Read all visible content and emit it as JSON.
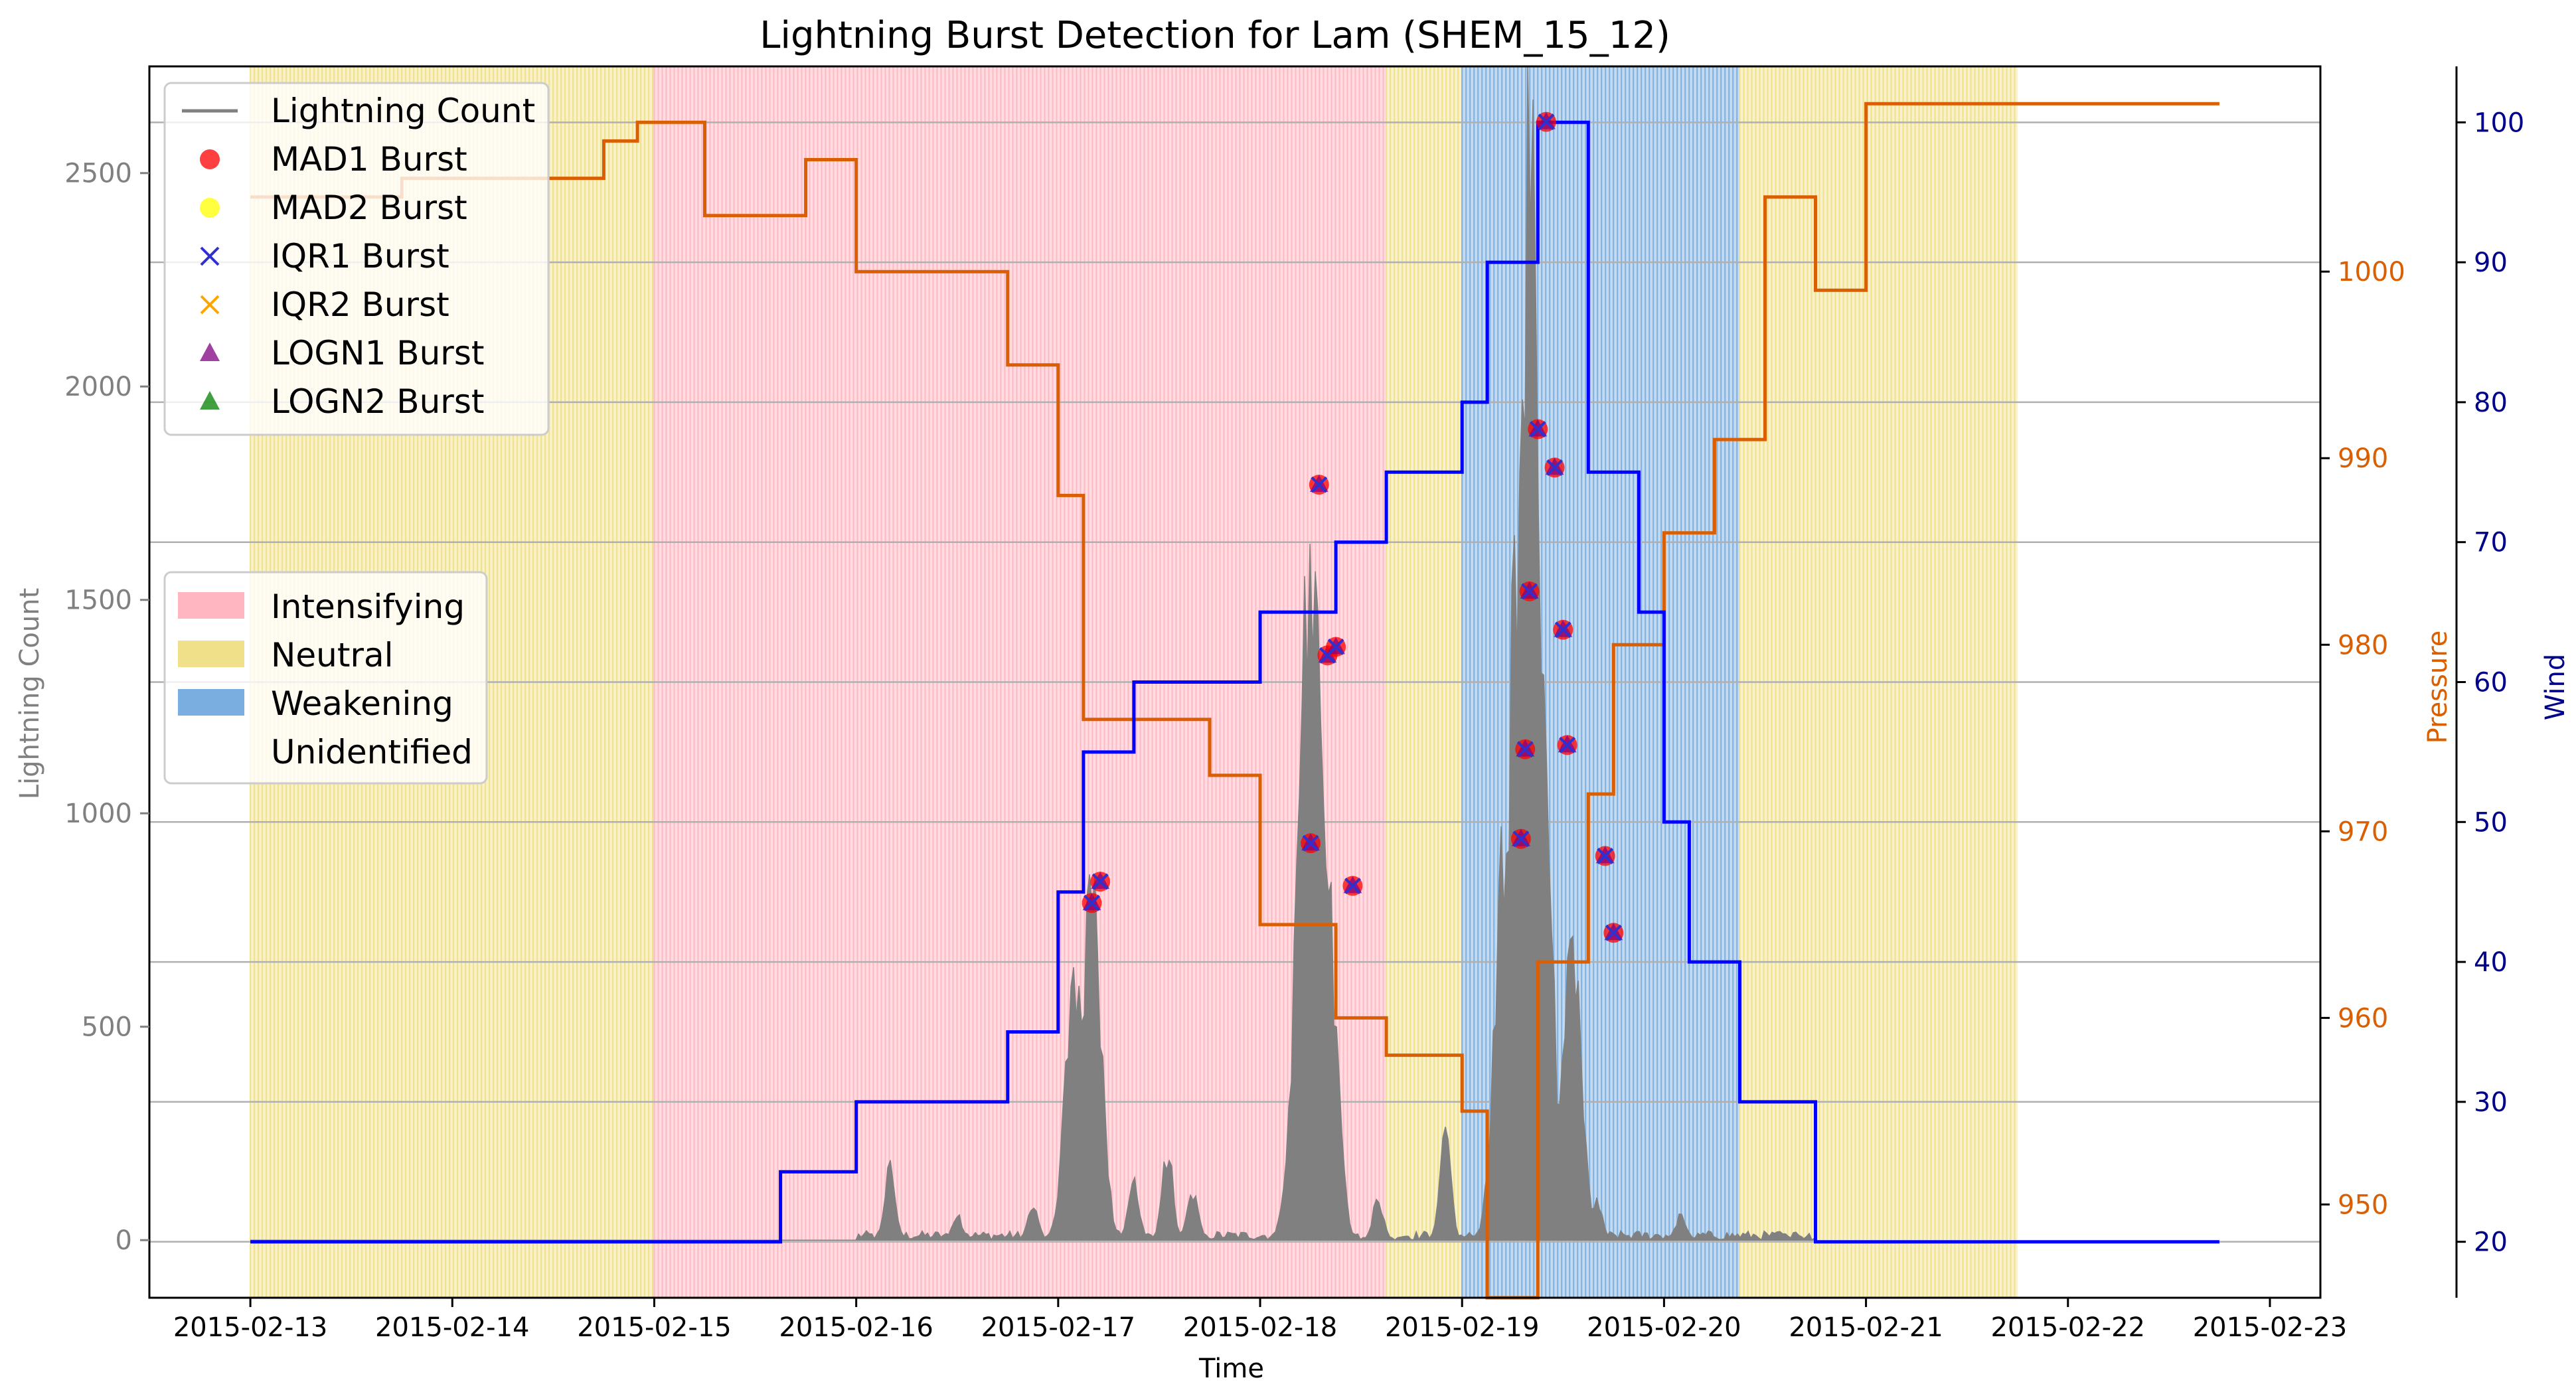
{
  "chart_data": {
    "type": "line",
    "title": "Lightning Burst Detection for Lam (SHEM_15_12)",
    "xlabel": "Time",
    "ylabel_left": "Lightning Count",
    "ylabel_right1": "Pressure",
    "ylabel_right2": "Wind",
    "x_ticks": [
      "2015-02-13",
      "2015-02-14",
      "2015-02-15",
      "2015-02-16",
      "2015-02-17",
      "2015-02-18",
      "2015-02-19",
      "2015-02-20",
      "2015-02-21",
      "2015-02-22",
      "2015-02-23"
    ],
    "x_range": [
      "2015-02-12 12:00",
      "2015-02-23 06:00"
    ],
    "y_left": {
      "min": -135,
      "max": 2750,
      "ticks": [
        0,
        500,
        1000,
        1500,
        2000,
        2500
      ]
    },
    "y_pressure": {
      "min": 945,
      "max": 1011,
      "ticks": [
        950,
        960,
        970,
        980,
        990,
        1000
      ]
    },
    "y_wind": {
      "min": 16,
      "max": 104,
      "ticks": [
        20,
        30,
        40,
        50,
        60,
        70,
        80,
        90,
        100
      ]
    },
    "grid": "horizontal lines at wind ticks",
    "colors": {
      "lightning": "#808080",
      "pressure": "#d95f02",
      "wind": "#0000ff",
      "intensifying": "#ffb6c1",
      "neutral": "#f0e08a",
      "weakening": "#7aaee0",
      "mad1": "#ff0000",
      "mad2": "#ffff00",
      "iqr1": "#3030d0",
      "iqr2": "#ffa500",
      "logn1": "#800080",
      "logn2": "#008000"
    },
    "phases": [
      {
        "label": "Neutral",
        "start": "2015-02-13 00:00",
        "end": "2015-02-15 00:00"
      },
      {
        "label": "Intensifying",
        "start": "2015-02-15 00:00",
        "end": "2015-02-18 15:00"
      },
      {
        "label": "Neutral",
        "start": "2015-02-18 15:00",
        "end": "2015-02-19 00:00"
      },
      {
        "label": "Weakening",
        "start": "2015-02-19 00:00",
        "end": "2015-02-20 09:00"
      },
      {
        "label": "Neutral",
        "start": "2015-02-20 09:00",
        "end": "2015-02-21 18:00"
      }
    ],
    "pressure_series": {
      "name": "Pressure",
      "times": [
        "2015-02-13 00:00",
        "2015-02-13 18:00",
        "2015-02-14 18:00",
        "2015-02-14 22:00",
        "2015-02-15 06:00",
        "2015-02-15 18:00",
        "2015-02-16 00:00",
        "2015-02-16 18:00",
        "2015-02-17 00:00",
        "2015-02-17 03:00",
        "2015-02-17 18:00",
        "2015-02-18 00:00",
        "2015-02-18 09:00",
        "2015-02-18 15:00",
        "2015-02-19 00:00",
        "2015-02-19 03:00",
        "2015-02-19 09:00",
        "2015-02-19 15:00",
        "2015-02-19 18:00",
        "2015-02-20 00:00",
        "2015-02-20 06:00",
        "2015-02-20 12:00",
        "2015-02-20 18:00",
        "2015-02-21 00:00",
        "2015-02-22 18:00"
      ],
      "values": [
        1004,
        1005,
        1007,
        1008,
        1003,
        1006,
        1000,
        995,
        988,
        976,
        973,
        965,
        960,
        958,
        955,
        945,
        963,
        972,
        980,
        986,
        991,
        1004,
        999,
        1009,
        1009
      ]
    },
    "wind_series": {
      "name": "Wind",
      "times": [
        "2015-02-13 00:00",
        "2015-02-15 15:00",
        "2015-02-16 00:00",
        "2015-02-16 18:00",
        "2015-02-17 00:00",
        "2015-02-17 03:00",
        "2015-02-17 09:00",
        "2015-02-18 00:00",
        "2015-02-18 09:00",
        "2015-02-18 15:00",
        "2015-02-19 00:00",
        "2015-02-19 03:00",
        "2015-02-19 09:00",
        "2015-02-19 15:00",
        "2015-02-19 21:00",
        "2015-02-20 00:00",
        "2015-02-20 03:00",
        "2015-02-20 09:00",
        "2015-02-20 18:00",
        "2015-02-22 18:00"
      ],
      "values": [
        20,
        25,
        30,
        35,
        45,
        55,
        60,
        65,
        70,
        75,
        80,
        90,
        100,
        75,
        65,
        50,
        40,
        30,
        20,
        20
      ]
    },
    "lightning_peaks": [
      {
        "time": "2015-02-16 04:00",
        "value": 180
      },
      {
        "time": "2015-02-16 12:00",
        "value": 60
      },
      {
        "time": "2015-02-16 21:00",
        "value": 80
      },
      {
        "time": "2015-02-17 02:00",
        "value": 660
      },
      {
        "time": "2015-02-17 04:00",
        "value": 850
      },
      {
        "time": "2015-02-17 09:00",
        "value": 150
      },
      {
        "time": "2015-02-17 13:00",
        "value": 220
      },
      {
        "time": "2015-02-17 16:00",
        "value": 120
      },
      {
        "time": "2015-02-18 04:00",
        "value": 300
      },
      {
        "time": "2015-02-18 06:00",
        "value": 1770
      },
      {
        "time": "2015-02-18 08:00",
        "value": 830
      },
      {
        "time": "2015-02-18 14:00",
        "value": 100
      },
      {
        "time": "2015-02-18 22:00",
        "value": 290
      },
      {
        "time": "2015-02-19 05:00",
        "value": 940
      },
      {
        "time": "2015-02-19 07:00",
        "value": 1900
      },
      {
        "time": "2015-02-19 08:00",
        "value": 2620
      },
      {
        "time": "2015-02-19 09:00",
        "value": 1430
      },
      {
        "time": "2015-02-19 13:00",
        "value": 720
      },
      {
        "time": "2015-02-19 16:00",
        "value": 100
      },
      {
        "time": "2015-02-20 02:00",
        "value": 60
      },
      {
        "time": "2015-02-20 14:00",
        "value": 20
      }
    ],
    "burst_markers": [
      {
        "time": "2015-02-17 04:00",
        "value": 790
      },
      {
        "time": "2015-02-17 05:00",
        "value": 840
      },
      {
        "time": "2015-02-18 06:00",
        "value": 930
      },
      {
        "time": "2015-02-18 07:00",
        "value": 1770
      },
      {
        "time": "2015-02-18 08:00",
        "value": 1370
      },
      {
        "time": "2015-02-18 09:00",
        "value": 1390
      },
      {
        "time": "2015-02-18 11:00",
        "value": 830
      },
      {
        "time": "2015-02-19 07:00",
        "value": 940
      },
      {
        "time": "2015-02-19 07:30",
        "value": 1150
      },
      {
        "time": "2015-02-19 08:00",
        "value": 1520
      },
      {
        "time": "2015-02-19 09:00",
        "value": 1900
      },
      {
        "time": "2015-02-19 10:00",
        "value": 2620
      },
      {
        "time": "2015-02-19 11:00",
        "value": 1810
      },
      {
        "time": "2015-02-19 12:00",
        "value": 1430
      },
      {
        "time": "2015-02-19 12:30",
        "value": 1160
      },
      {
        "time": "2015-02-19 17:00",
        "value": 900
      },
      {
        "time": "2015-02-19 18:00",
        "value": 720
      }
    ],
    "legend_top": [
      {
        "label": "Lightning Count",
        "kind": "line",
        "color": "#808080"
      },
      {
        "label": "MAD1 Burst",
        "kind": "circle",
        "color": "#ff0000"
      },
      {
        "label": "MAD2 Burst",
        "kind": "circle",
        "color": "#ffff00"
      },
      {
        "label": "IQR1 Burst",
        "kind": "x",
        "color": "#3030d0"
      },
      {
        "label": "IQR2 Burst",
        "kind": "x",
        "color": "#ffa500"
      },
      {
        "label": "LOGN1 Burst",
        "kind": "triangle",
        "color": "#800080"
      },
      {
        "label": "LOGN2 Burst",
        "kind": "triangle",
        "color": "#008000"
      }
    ],
    "legend_phase": [
      {
        "label": "Intensifying",
        "color": "#ffb6c1"
      },
      {
        "label": "Neutral",
        "color": "#f0e08a"
      },
      {
        "label": "Weakening",
        "color": "#7aaee0"
      },
      {
        "label": "Unidentified",
        "color": "#ffffff"
      }
    ]
  }
}
